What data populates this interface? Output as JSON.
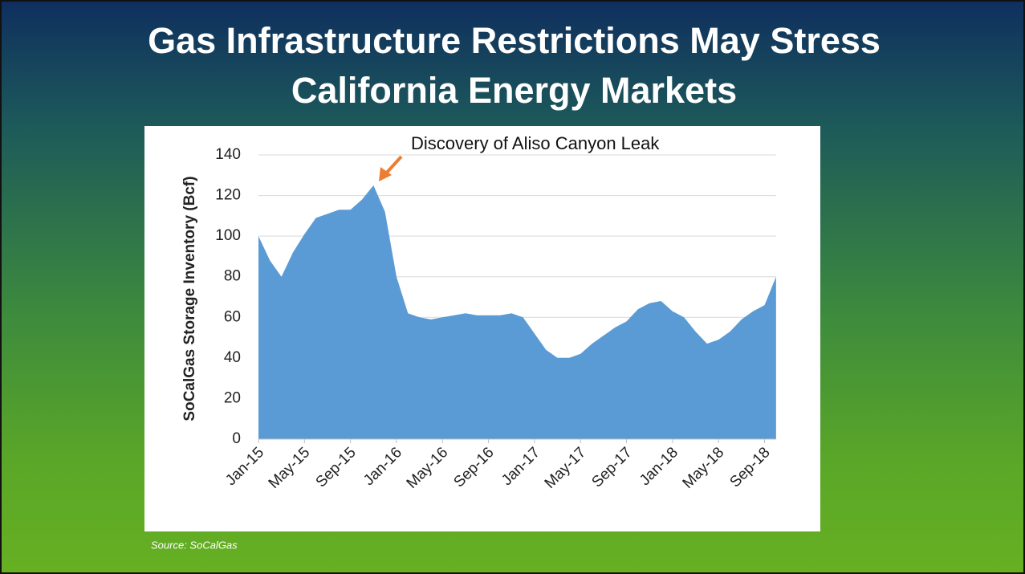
{
  "chart_data": {
    "type": "area",
    "title": "Gas Infrastructure Restrictions May Stress California Energy Markets",
    "y_label": "SoCalGas Storage Inventory (Bcf)",
    "annotation": "Discovery of Aliso Canyon Leak",
    "source": "Source: SoCalGas",
    "color": "#5b9bd5",
    "annotation_color": "#ed7d31",
    "grid": true,
    "categories": [
      "Jan-15",
      null,
      null,
      null,
      "May-15",
      null,
      null,
      null,
      "Sep-15",
      null,
      null,
      null,
      "Jan-16",
      null,
      null,
      null,
      "May-16",
      null,
      null,
      null,
      "Sep-16",
      null,
      null,
      null,
      "Jan-17",
      null,
      null,
      null,
      "May-17",
      null,
      null,
      null,
      "Sep-17",
      null,
      null,
      null,
      "Jan-18",
      null,
      null,
      null,
      "May-18",
      null,
      null,
      null,
      "Sep-18",
      null
    ],
    "values": [
      100,
      88,
      80,
      92,
      101,
      109,
      111,
      113,
      113,
      118,
      125,
      112,
      80,
      62,
      60,
      59,
      60,
      61,
      62,
      61,
      61,
      61,
      62,
      60,
      52,
      44,
      40,
      40,
      42,
      47,
      51,
      55,
      58,
      64,
      67,
      68,
      63,
      60,
      53,
      47,
      49,
      53,
      59,
      63,
      66,
      80
    ],
    "ylim": [
      0,
      140
    ],
    "yticks": [
      0,
      20,
      40,
      60,
      80,
      100,
      120,
      140
    ]
  }
}
